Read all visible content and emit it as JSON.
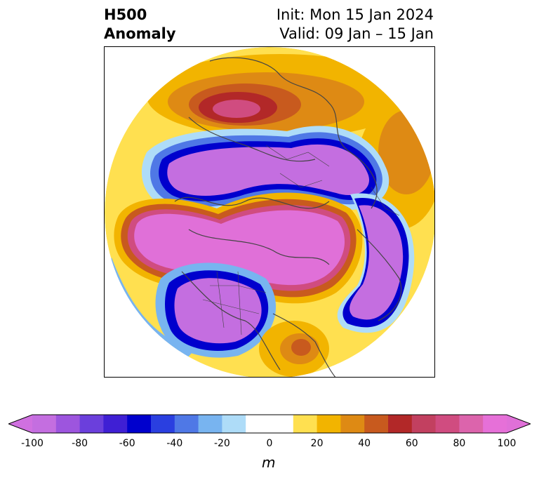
{
  "title": {
    "left_line1": "H500",
    "left_line2": "Anomaly",
    "right_line1": "Init: Mon 15 Jan 2024",
    "right_line2": "Valid: 09 Jan – 15 Jan"
  },
  "map": {
    "projection": "north-polar-stereographic",
    "features": [
      "coastlines",
      "country-borders",
      "us-state-borders"
    ]
  },
  "colorbar": {
    "unit": "m",
    "min": -100,
    "max": 100,
    "extend": "both",
    "tick_labels": [
      "-100",
      "-80",
      "-60",
      "-40",
      "-20",
      "0",
      "20",
      "40",
      "60",
      "80",
      "100"
    ],
    "bins": [
      {
        "from": -100,
        "to": -90,
        "color": "#c46ee0"
      },
      {
        "from": -90,
        "to": -80,
        "color": "#9d55de"
      },
      {
        "from": -80,
        "to": -70,
        "color": "#6b3fdc"
      },
      {
        "from": -70,
        "to": -60,
        "color": "#3f1fd4"
      },
      {
        "from": -60,
        "to": -50,
        "color": "#0000cd"
      },
      {
        "from": -50,
        "to": -40,
        "color": "#2a3fe0"
      },
      {
        "from": -40,
        "to": -30,
        "color": "#4f78e6"
      },
      {
        "from": -30,
        "to": -20,
        "color": "#78b4f0"
      },
      {
        "from": -20,
        "to": -10,
        "color": "#aedcf8"
      },
      {
        "from": -10,
        "to": 10,
        "color": "#ffffff"
      },
      {
        "from": 10,
        "to": 20,
        "color": "#ffe050"
      },
      {
        "from": 20,
        "to": 30,
        "color": "#f2b400"
      },
      {
        "from": 30,
        "to": 40,
        "color": "#de8a14"
      },
      {
        "from": 40,
        "to": 50,
        "color": "#c85a1e"
      },
      {
        "from": 50,
        "to": 60,
        "color": "#b22828"
      },
      {
        "from": 60,
        "to": 70,
        "color": "#c24060"
      },
      {
        "from": 70,
        "to": 80,
        "color": "#d04c80"
      },
      {
        "from": 80,
        "to": 90,
        "color": "#dc64ac"
      },
      {
        "from": 90,
        "to": 100,
        "color": "#e670d8"
      }
    ],
    "under_color": "#d070e0",
    "over_color": "#e070d8"
  }
}
